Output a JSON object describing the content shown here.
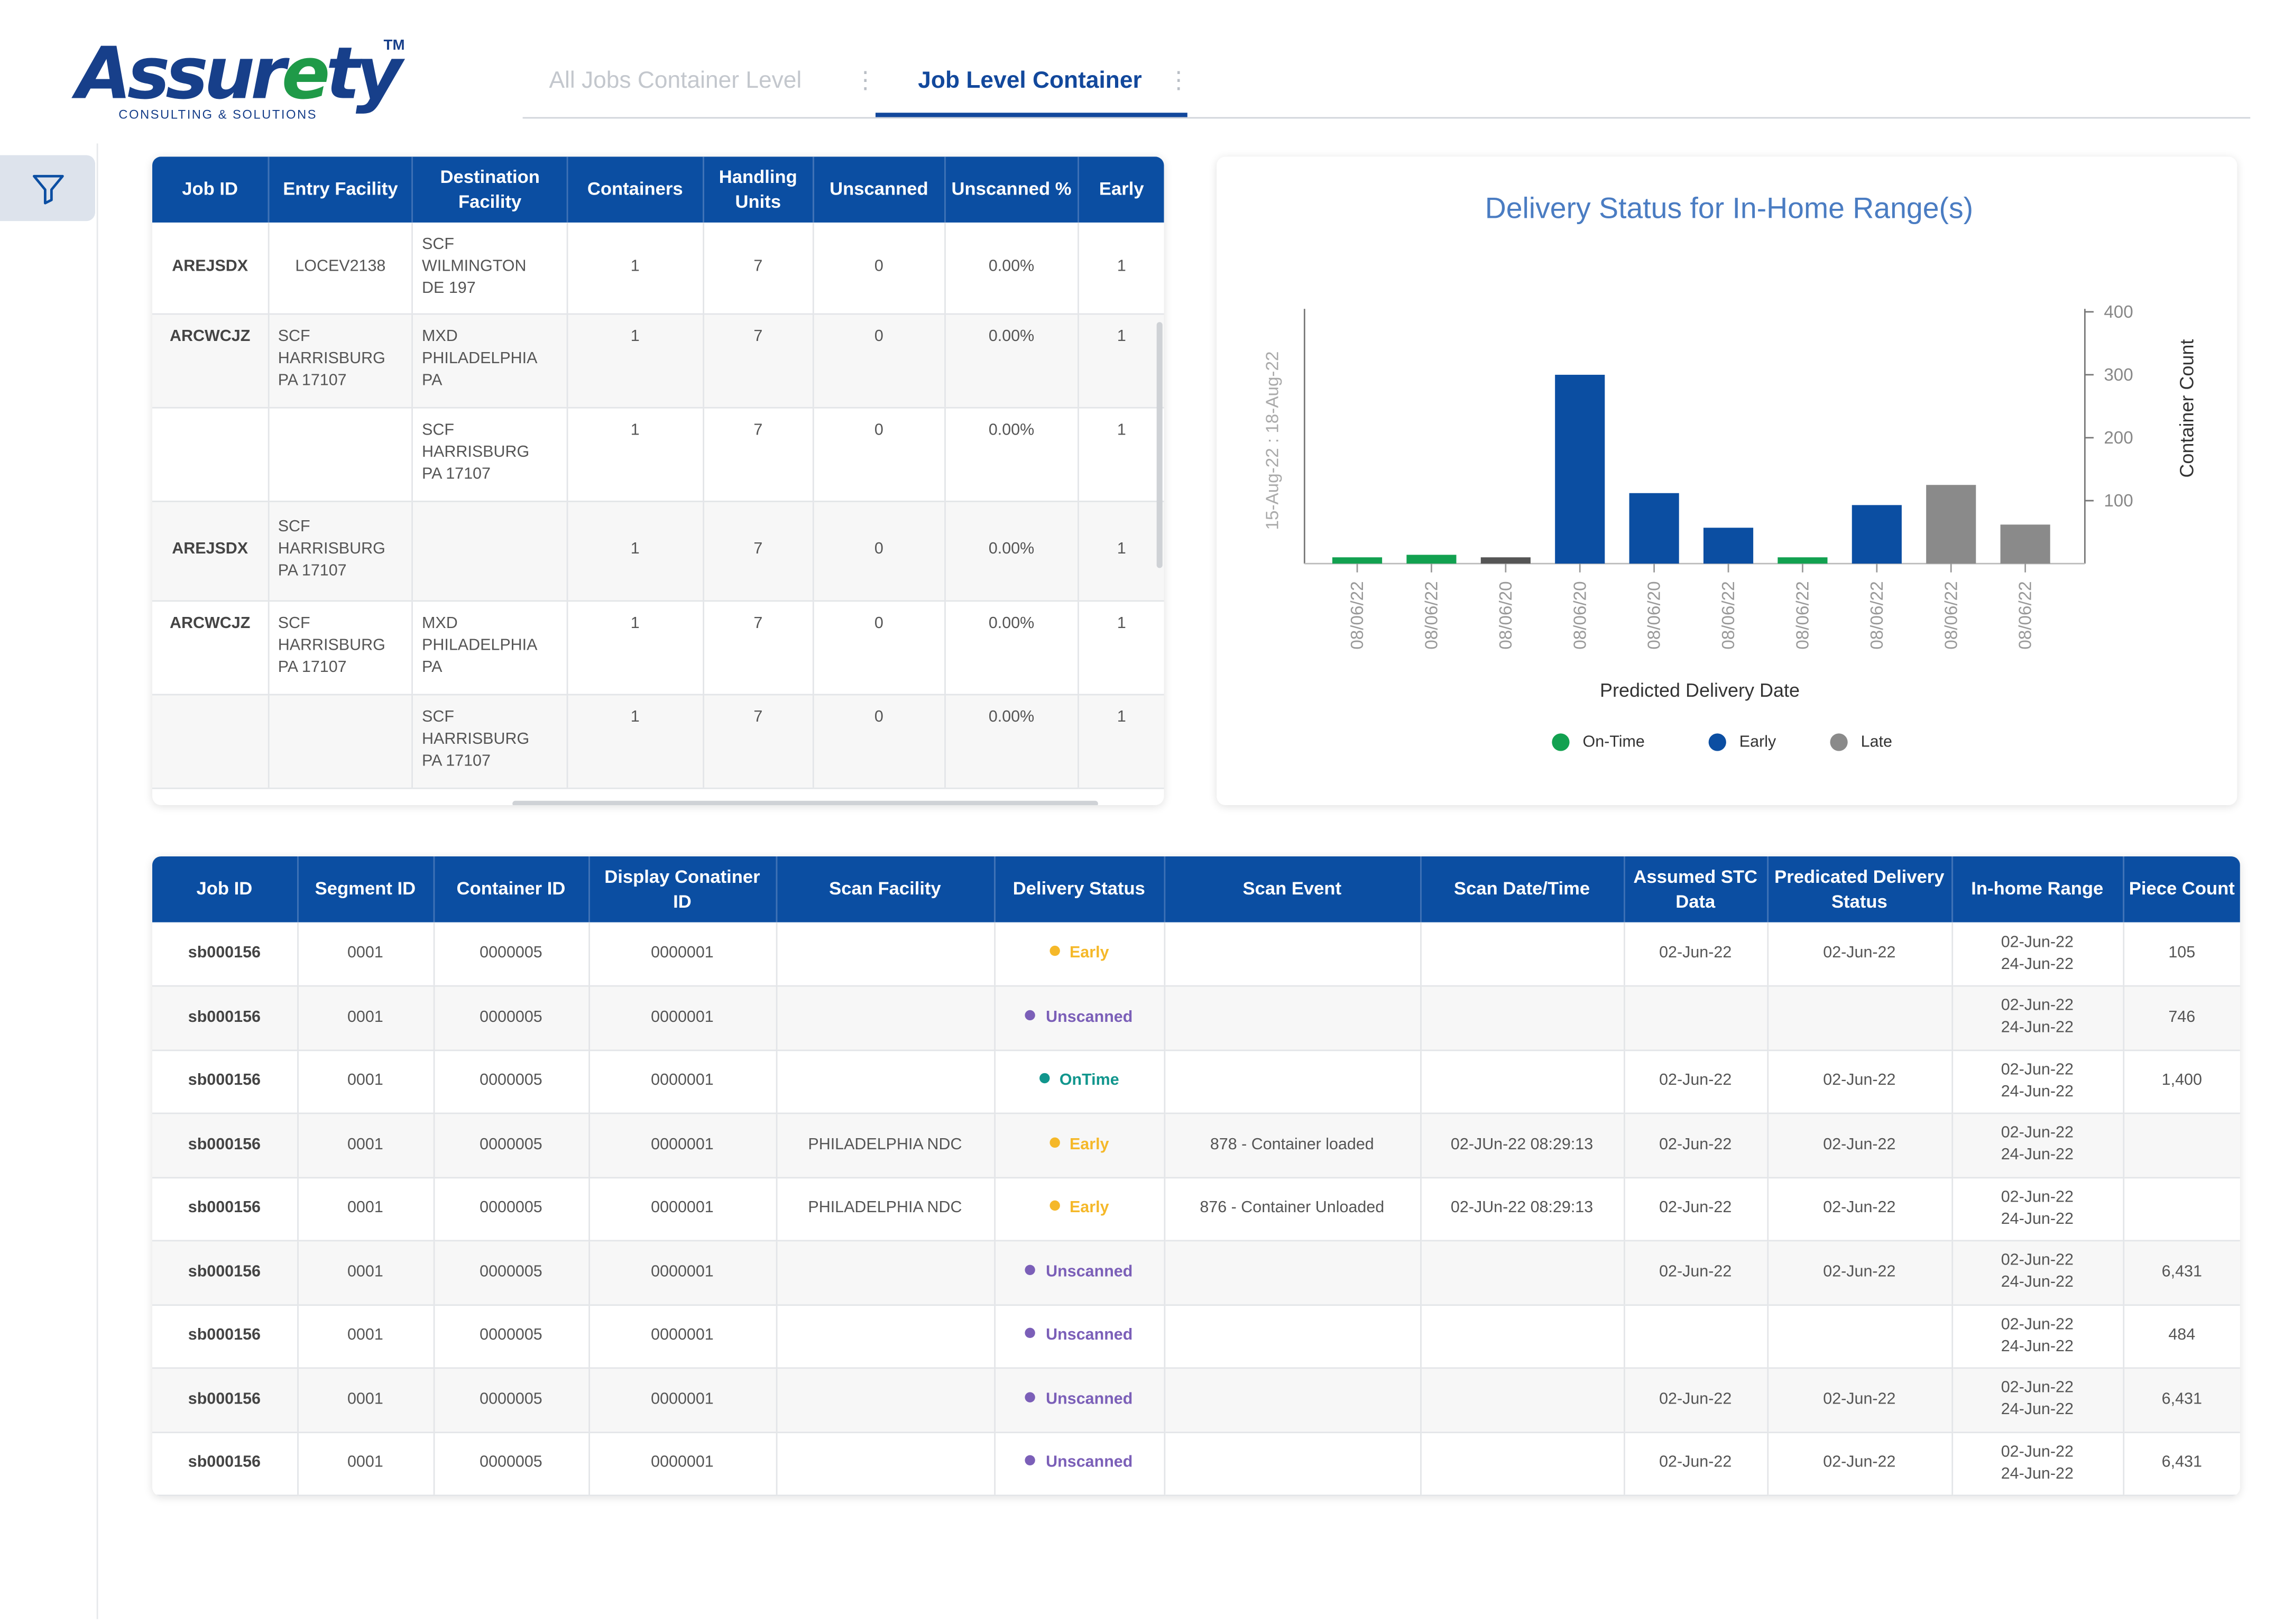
{
  "logo": {
    "main_pre": "Assur",
    "main_e": "e",
    "main_post": "ty",
    "tm": "TM",
    "sub": "CONSULTING & SOLUTIONS"
  },
  "tabs": [
    {
      "label": "All Jobs Container Level",
      "active": false
    },
    {
      "label": "Job Level Container",
      "active": true
    }
  ],
  "sidebar": {
    "filter_icon": "filter-icon"
  },
  "top_table": {
    "headers": [
      "Job ID",
      "Entry Facility",
      "Destination Facility",
      "Containers",
      "Handling Units",
      "Unscanned",
      "Unscanned %",
      "Early"
    ],
    "rows": [
      [
        "AREJSDX",
        "LOCEV2138",
        "SCF WILMINGTON DE 197",
        "1",
        "7",
        "0",
        "0.00%",
        "1"
      ],
      [
        "ARCWCJZ",
        "SCF HARRISBURG PA 17107",
        "MXD PHILADELPHIA PA",
        "1",
        "7",
        "0",
        "0.00%",
        "1"
      ],
      [
        "",
        "",
        "SCF HARRISBURG PA 17107",
        "1",
        "7",
        "0",
        "0.00%",
        "1"
      ],
      [
        "AREJSDX",
        "SCF HARRISBURG PA 17107",
        "",
        "1",
        "7",
        "0",
        "0.00%",
        "1"
      ],
      [
        "ARCWCJZ",
        "SCF HARRISBURG PA 17107",
        "MXD PHILADELPHIA PA",
        "1",
        "7",
        "0",
        "0.00%",
        "1"
      ],
      [
        "",
        "",
        "SCF HARRISBURG PA 17107",
        "1",
        "7",
        "0",
        "0.00%",
        "1"
      ]
    ]
  },
  "chart_data": {
    "type": "bar",
    "title": "Delivery Status for In-Home Range(s)",
    "xlabel": "Predicted Delivery Date",
    "ylabel_right": "Container Count",
    "ylabel_left": "15-Aug-22 : 18-Aug-22",
    "ylim": [
      0,
      400
    ],
    "yticks": [
      "100",
      "200",
      "300",
      "400"
    ],
    "categories": [
      "08/06/22",
      "08/06/22",
      "08/06/20",
      "08/06/20",
      "08/06/20",
      "08/06/22",
      "08/06/22",
      "08/06/22",
      "08/06/22",
      "08/06/22"
    ],
    "values": [
      10,
      14,
      10,
      300,
      112,
      57,
      10,
      93,
      125,
      62
    ],
    "bar_status": [
      "On-Time",
      "On-Time",
      "Other",
      "Early",
      "Early",
      "Early",
      "On-Time",
      "Early",
      "Late",
      "Late"
    ],
    "series": [
      {
        "name": "On-Time",
        "color": "#12a150"
      },
      {
        "name": "Early",
        "color": "#0b4ea2"
      },
      {
        "name": "Late",
        "color": "#8a8a8a"
      }
    ],
    "other_color": "#555555",
    "legend_position": "bottom"
  },
  "bottom_table": {
    "headers": [
      "Job ID",
      "Segment ID",
      "Container ID",
      "Display Conatiner ID",
      "Scan Facility",
      "Delivery Status",
      "Scan Event",
      "Scan Date/Time",
      "Assumed STC Data",
      "Predicated Delivery Status",
      "In-home Range",
      "Piece Count"
    ],
    "rows": [
      {
        "job": "sb000156",
        "seg": "0001",
        "cid": "0000005",
        "did": "0000001",
        "facility": "",
        "status": "Early",
        "status_kind": "early",
        "event": "",
        "datetime": "",
        "stc": "02-Jun-22",
        "pred": "02-Jun-22",
        "range1": "02-Jun-22",
        "range2": "24-Jun-22",
        "count": "105"
      },
      {
        "job": "sb000156",
        "seg": "0001",
        "cid": "0000005",
        "did": "0000001",
        "facility": "",
        "status": "Unscanned",
        "status_kind": "uns",
        "event": "",
        "datetime": "",
        "stc": "",
        "pred": "",
        "range1": "02-Jun-22",
        "range2": "24-Jun-22",
        "count": "746"
      },
      {
        "job": "sb000156",
        "seg": "0001",
        "cid": "0000005",
        "did": "0000001",
        "facility": "",
        "status": "OnTime",
        "status_kind": "on",
        "event": "",
        "datetime": "",
        "stc": "02-Jun-22",
        "pred": "02-Jun-22",
        "range1": "02-Jun-22",
        "range2": "24-Jun-22",
        "count": "1,400"
      },
      {
        "job": "sb000156",
        "seg": "0001",
        "cid": "0000005",
        "did": "0000001",
        "facility": "PHILADELPHIA NDC",
        "status": "Early",
        "status_kind": "early",
        "event": "878 - Container loaded",
        "datetime": "02-JUn-22 08:29:13",
        "stc": "02-Jun-22",
        "pred": "02-Jun-22",
        "range1": "02-Jun-22",
        "range2": "24-Jun-22",
        "count": ""
      },
      {
        "job": "sb000156",
        "seg": "0001",
        "cid": "0000005",
        "did": "0000001",
        "facility": "PHILADELPHIA NDC",
        "status": "Early",
        "status_kind": "early",
        "event": "876 - Container Unloaded",
        "datetime": "02-JUn-22 08:29:13",
        "stc": "02-Jun-22",
        "pred": "02-Jun-22",
        "range1": "02-Jun-22",
        "range2": "24-Jun-22",
        "count": ""
      },
      {
        "job": "sb000156",
        "seg": "0001",
        "cid": "0000005",
        "did": "0000001",
        "facility": "",
        "status": "Unscanned",
        "status_kind": "uns",
        "event": "",
        "datetime": "",
        "stc": "02-Jun-22",
        "pred": "02-Jun-22",
        "range1": "02-Jun-22",
        "range2": "24-Jun-22",
        "count": "6,431"
      },
      {
        "job": "sb000156",
        "seg": "0001",
        "cid": "0000005",
        "did": "0000001",
        "facility": "",
        "status": "Unscanned",
        "status_kind": "uns",
        "event": "",
        "datetime": "",
        "stc": "",
        "pred": "",
        "range1": "02-Jun-22",
        "range2": "24-Jun-22",
        "count": "484"
      },
      {
        "job": "sb000156",
        "seg": "0001",
        "cid": "0000005",
        "did": "0000001",
        "facility": "",
        "status": "Unscanned",
        "status_kind": "uns",
        "event": "",
        "datetime": "",
        "stc": "02-Jun-22",
        "pred": "02-Jun-22",
        "range1": "02-Jun-22",
        "range2": "24-Jun-22",
        "count": "6,431"
      },
      {
        "job": "sb000156",
        "seg": "0001",
        "cid": "0000005",
        "did": "0000001",
        "facility": "",
        "status": "Unscanned",
        "status_kind": "uns",
        "event": "",
        "datetime": "",
        "stc": "02-Jun-22",
        "pred": "02-Jun-22",
        "range1": "02-Jun-22",
        "range2": "24-Jun-22",
        "count": "6,431"
      }
    ]
  }
}
